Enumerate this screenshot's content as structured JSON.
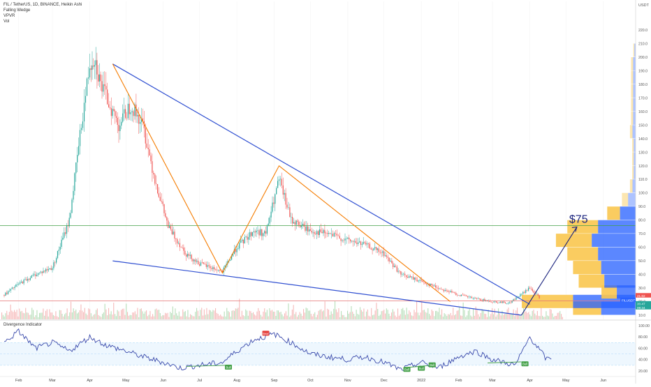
{
  "header": {
    "symbol_line": "FIL / TetherUS, 1D, BINANCE, Heikin Ashi",
    "indicators": [
      "Falling Wedge",
      "VPVR",
      "Vol"
    ]
  },
  "price_axis": {
    "currency": "USDT",
    "ticks": [
      220,
      210,
      200,
      190,
      180,
      170,
      160,
      150,
      140,
      130,
      120,
      110,
      100,
      90,
      80,
      70,
      60,
      50,
      40,
      30,
      20,
      10
    ],
    "badges": [
      {
        "text": "21.82",
        "color": "#ef5350"
      },
      {
        "text": "FILUSDT",
        "color": "#2962ff"
      },
      {
        "text": "20.47",
        "color": "#26a69a"
      },
      {
        "text": "09:34",
        "color": "#26a69a"
      }
    ]
  },
  "time_axis": {
    "labels": [
      "Feb",
      "Mar",
      "Apr",
      "May",
      "Jun",
      "Jul",
      "Aug",
      "Sep",
      "Oct",
      "Nov",
      "Dec",
      "2022",
      "Feb",
      "Mar",
      "Apr",
      "May",
      "Jun"
    ]
  },
  "annotation": {
    "target_text": "$75"
  },
  "oscillator": {
    "title": "Divergence Indicator",
    "ticks": [
      100,
      80,
      60,
      40,
      20
    ],
    "labels": [
      {
        "text": "Bull",
        "color": "#43a047"
      },
      {
        "text": "Bear",
        "color": "#e53935"
      },
      {
        "text": "Bull",
        "color": "#43a047"
      },
      {
        "text": "Bull",
        "color": "#43a047"
      },
      {
        "text": "Bull",
        "color": "#43a047"
      },
      {
        "text": "Bull",
        "color": "#43a047"
      }
    ]
  },
  "colors": {
    "up": "#26a69a",
    "down": "#ef5350",
    "wedge": "#2f4fd1",
    "zigzag": "#f57c00",
    "hline_green": "#43a047",
    "hline_red": "#e57373",
    "oscillator_line": "#3949ab",
    "vpvr_yellow": "#f9c74f",
    "vpvr_blue": "#2962ff"
  },
  "chart_data": {
    "type": "line",
    "title": "FIL / TetherUS, 1D, BINANCE, Heikin Ashi",
    "price_series": {
      "name": "FIL / TetherUS",
      "x": [
        "2021-01-20",
        "2021-02-01",
        "2021-02-15",
        "2021-03-01",
        "2021-03-15",
        "2021-03-25",
        "2021-04-01",
        "2021-04-05",
        "2021-04-10",
        "2021-04-20",
        "2021-04-25",
        "2021-05-05",
        "2021-05-15",
        "2021-05-25",
        "2021-06-05",
        "2021-06-20",
        "2021-07-01",
        "2021-07-20",
        "2021-08-01",
        "2021-08-15",
        "2021-08-25",
        "2021-09-05",
        "2021-09-15",
        "2021-10-01",
        "2021-10-15",
        "2021-11-01",
        "2021-11-15",
        "2021-12-01",
        "2021-12-15",
        "2022-01-01",
        "2022-01-15",
        "2022-02-01",
        "2022-02-15",
        "2022-03-01",
        "2022-03-15",
        "2022-04-01",
        "2022-04-10"
      ],
      "y": [
        25,
        33,
        40,
        45,
        80,
        150,
        195,
        200,
        180,
        160,
        150,
        165,
        150,
        110,
        75,
        55,
        48,
        42,
        60,
        72,
        70,
        110,
        80,
        72,
        70,
        65,
        62,
        55,
        40,
        35,
        30,
        25,
        22,
        20,
        19,
        30,
        21.82
      ]
    },
    "wedge_upper": {
      "x": [
        "2021-04-20",
        "2022-04-01"
      ],
      "y": [
        195,
        18
      ]
    },
    "wedge_lower": {
      "x": [
        "2021-04-20",
        "2022-03-25"
      ],
      "y": [
        50,
        10
      ]
    },
    "zigzag": {
      "x": [
        "2021-04-20",
        "2021-07-20",
        "2021-09-05",
        "2022-01-25"
      ],
      "y": [
        195,
        41,
        120,
        20
      ]
    },
    "target_line": {
      "x": [
        "2022-03-25",
        "2022-05-10"
      ],
      "y": [
        10,
        75
      ]
    },
    "horizontal_levels": [
      76,
      20.47
    ],
    "ylim": [
      5,
      225
    ],
    "oscillator": {
      "name": "Divergence Indicator",
      "ylim": [
        10,
        100
      ],
      "x": [
        "2021-01-20",
        "2021-02-01",
        "2021-02-15",
        "2021-03-01",
        "2021-03-15",
        "2021-04-01",
        "2021-04-15",
        "2021-05-01",
        "2021-05-15",
        "2021-06-01",
        "2021-06-15",
        "2021-07-01",
        "2021-07-20",
        "2021-08-01",
        "2021-08-15",
        "2021-09-01",
        "2021-09-15",
        "2021-10-01",
        "2021-10-15",
        "2021-11-01",
        "2021-11-15",
        "2021-12-01",
        "2021-12-15",
        "2022-01-01",
        "2022-01-15",
        "2022-02-01",
        "2022-02-15",
        "2022-03-01",
        "2022-03-20",
        "2022-04-01",
        "2022-04-15",
        "2022-04-20"
      ],
      "y": [
        70,
        90,
        60,
        70,
        55,
        80,
        65,
        55,
        45,
        35,
        25,
        30,
        35,
        55,
        75,
        85,
        70,
        50,
        45,
        40,
        45,
        35,
        22,
        35,
        25,
        45,
        55,
        40,
        30,
        80,
        40,
        45
      ]
    },
    "vpvr": {
      "price_levels": [
        15,
        20,
        27,
        35,
        45,
        55,
        65,
        75,
        85,
        95,
        105,
        115,
        125,
        135,
        145,
        155,
        165,
        175,
        185,
        195,
        205
      ],
      "volume": [
        0.55,
        1.0,
        0.3,
        0.5,
        0.55,
        0.6,
        0.7,
        0.6,
        0.25,
        0.12,
        0.05,
        0.03,
        0.03,
        0.03,
        0.05,
        0.04,
        0.04,
        0.04,
        0.04,
        0.04,
        0.02
      ]
    }
  }
}
